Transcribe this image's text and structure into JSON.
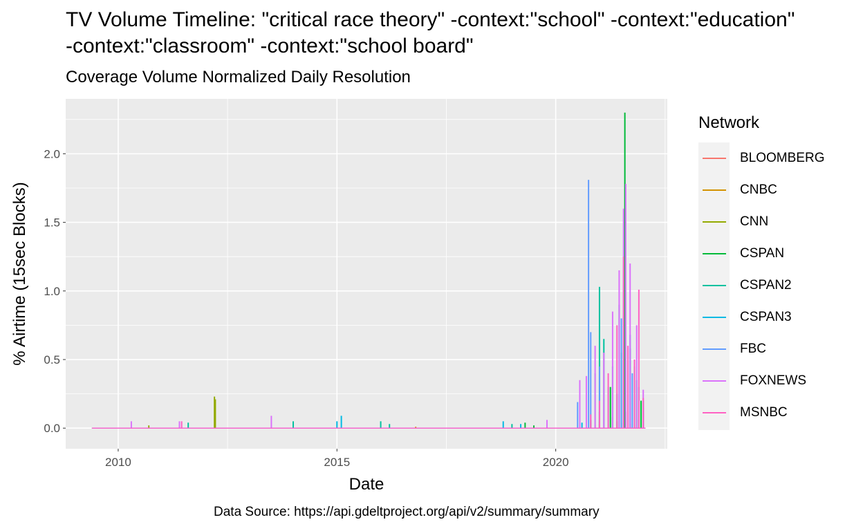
{
  "chart_data": {
    "type": "line",
    "title": "TV Volume Timeline: \"critical race theory\" -context:\"school\" -context:\"education\"\n-context:\"classroom\" -context:\"school board\"",
    "subtitle": "Coverage Volume Normalized Daily Resolution",
    "xlabel": "Date",
    "ylabel": "% Airtime (15sec Blocks)",
    "caption": "Data Source: https://api.gdeltproject.org/api/v2/summary/summary",
    "xlim": [
      2008.8,
      2022.55
    ],
    "ylim": [
      -0.15,
      2.4
    ],
    "x_ticks": [
      {
        "value": 2010,
        "label": "2010"
      },
      {
        "value": 2015,
        "label": "2015"
      },
      {
        "value": 2020,
        "label": "2020"
      }
    ],
    "y_ticks": [
      {
        "value": 0,
        "label": "0.0"
      },
      {
        "value": 0.5,
        "label": "0.5"
      },
      {
        "value": 1.0,
        "label": "1.0"
      },
      {
        "value": 1.5,
        "label": "1.5"
      },
      {
        "value": 2.0,
        "label": "2.0"
      }
    ],
    "grid": true,
    "legend_title": "Network",
    "legend_position": "right",
    "series": [
      {
        "name": "BLOOMBERG",
        "color": "#F8766D",
        "spikes": [
          [
            2020.9,
            0.02
          ],
          [
            2021.2,
            0.03
          ],
          [
            2021.5,
            0.04
          ],
          [
            2021.8,
            0.02
          ]
        ]
      },
      {
        "name": "CNBC",
        "color": "#D39200",
        "spikes": [
          [
            2016.8,
            0.01
          ],
          [
            2021.0,
            0.03
          ],
          [
            2021.4,
            0.05
          ],
          [
            2021.7,
            0.03
          ]
        ]
      },
      {
        "name": "CNN",
        "color": "#93AA00",
        "spikes": [
          [
            2010.7,
            0.02
          ],
          [
            2012.2,
            0.23
          ],
          [
            2012.22,
            0.21
          ],
          [
            2021.0,
            0.05
          ],
          [
            2021.3,
            0.08
          ],
          [
            2021.6,
            0.12
          ],
          [
            2021.9,
            0.06
          ]
        ]
      },
      {
        "name": "CSPAN",
        "color": "#00BA38",
        "spikes": [
          [
            2019.3,
            0.04
          ],
          [
            2019.5,
            0.02
          ],
          [
            2020.8,
            0.06
          ],
          [
            2021.0,
            0.12
          ],
          [
            2021.25,
            0.3
          ],
          [
            2021.5,
            0.55
          ],
          [
            2021.58,
            2.3
          ],
          [
            2021.8,
            0.45
          ],
          [
            2021.95,
            0.2
          ]
        ]
      },
      {
        "name": "CSPAN2",
        "color": "#00C19F",
        "spikes": [
          [
            2011.6,
            0.04
          ],
          [
            2014.0,
            0.05
          ],
          [
            2016.0,
            0.05
          ],
          [
            2016.2,
            0.03
          ],
          [
            2019.0,
            0.03
          ],
          [
            2020.9,
            0.4
          ],
          [
            2021.0,
            1.03
          ],
          [
            2021.1,
            0.65
          ],
          [
            2021.3,
            0.45
          ],
          [
            2021.45,
            0.9
          ],
          [
            2021.7,
            0.58
          ],
          [
            2021.85,
            0.35
          ],
          [
            2022.0,
            0.2
          ]
        ]
      },
      {
        "name": "CSPAN3",
        "color": "#00B9E3",
        "spikes": [
          [
            2015.1,
            0.09
          ],
          [
            2015.0,
            0.05
          ],
          [
            2018.8,
            0.05
          ],
          [
            2019.2,
            0.03
          ],
          [
            2020.6,
            0.04
          ],
          [
            2021.2,
            0.3
          ],
          [
            2021.4,
            0.25
          ],
          [
            2021.7,
            0.68
          ],
          [
            2021.9,
            0.3
          ]
        ]
      },
      {
        "name": "FBC",
        "color": "#619CFF",
        "spikes": [
          [
            2020.5,
            0.19
          ],
          [
            2020.75,
            1.81
          ],
          [
            2020.8,
            0.7
          ],
          [
            2021.0,
            0.45
          ],
          [
            2021.2,
            0.3
          ],
          [
            2021.5,
            0.8
          ],
          [
            2021.75,
            0.4
          ],
          [
            2022.0,
            0.15
          ]
        ]
      },
      {
        "name": "FOXNEWS",
        "color": "#DB72FB",
        "spikes": [
          [
            2010.3,
            0.05
          ],
          [
            2011.4,
            0.05
          ],
          [
            2013.5,
            0.09
          ],
          [
            2019.8,
            0.06
          ],
          [
            2020.55,
            0.35
          ],
          [
            2020.7,
            0.38
          ],
          [
            2020.9,
            0.6
          ],
          [
            2021.1,
            0.55
          ],
          [
            2021.3,
            0.85
          ],
          [
            2021.45,
            1.15
          ],
          [
            2021.55,
            1.6
          ],
          [
            2021.6,
            1.78
          ],
          [
            2021.7,
            1.2
          ],
          [
            2021.85,
            0.75
          ],
          [
            2022.0,
            0.28
          ]
        ]
      },
      {
        "name": "MSNBC",
        "color": "#FF61C3",
        "spikes": [
          [
            2011.45,
            0.05
          ],
          [
            2020.8,
            0.1
          ],
          [
            2021.0,
            0.2
          ],
          [
            2021.2,
            0.4
          ],
          [
            2021.4,
            0.75
          ],
          [
            2021.55,
            1.25
          ],
          [
            2021.65,
            0.6
          ],
          [
            2021.8,
            0.5
          ],
          [
            2021.9,
            1.01
          ],
          [
            2022.0,
            0.22
          ]
        ]
      }
    ]
  }
}
